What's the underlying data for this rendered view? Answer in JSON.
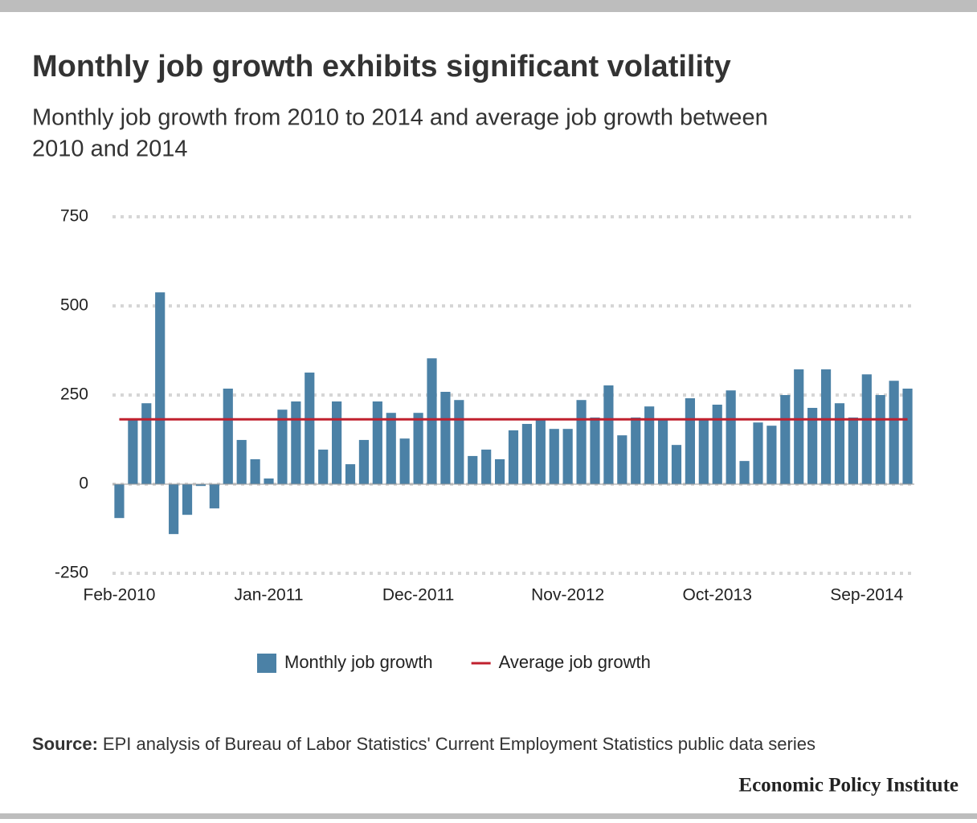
{
  "chart_data": {
    "type": "bar",
    "title": "Monthly job growth exhibits significant volatility",
    "subtitle_lines": [
      "Monthly job growth from 2010 to 2014 and average job growth between",
      "2010 and 2014"
    ],
    "categories": [
      "Feb-2010",
      null,
      null,
      null,
      null,
      null,
      null,
      null,
      null,
      null,
      null,
      "Jan-2011",
      null,
      null,
      null,
      null,
      null,
      null,
      null,
      null,
      null,
      null,
      "Dec-2011",
      null,
      null,
      null,
      null,
      null,
      null,
      null,
      null,
      null,
      null,
      "Nov-2012",
      null,
      null,
      null,
      null,
      null,
      null,
      null,
      null,
      null,
      null,
      "Oct-2013",
      null,
      null,
      null,
      null,
      null,
      null,
      null,
      null,
      null,
      null,
      "Sep-2014",
      null,
      null,
      null
    ],
    "series": [
      {
        "name": "Monthly job growth",
        "color": "#4b81a6",
        "kind": "bar",
        "values": [
          -95,
          182,
          227,
          538,
          -140,
          -86,
          -5,
          -68,
          268,
          124,
          70,
          16,
          209,
          232,
          313,
          97,
          232,
          56,
          124,
          232,
          200,
          128,
          200,
          353,
          259,
          236,
          79,
          97,
          70,
          151,
          169,
          182,
          155,
          155,
          236,
          187,
          277,
          137,
          187,
          218,
          182,
          110,
          241,
          182,
          223,
          263,
          65,
          173,
          164,
          250,
          322,
          214,
          322,
          227,
          187,
          308,
          250,
          290,
          268
        ]
      },
      {
        "name": "Average job growth",
        "color": "#c0202e",
        "kind": "line",
        "values": [
          182,
          182,
          182,
          182,
          182,
          182,
          182,
          182,
          182,
          182,
          182,
          182,
          182,
          182,
          182,
          182,
          182,
          182,
          182,
          182,
          182,
          182,
          182,
          182,
          182,
          182,
          182,
          182,
          182,
          182,
          182,
          182,
          182,
          182,
          182,
          182,
          182,
          182,
          182,
          182,
          182,
          182,
          182,
          182,
          182,
          182,
          182,
          182,
          182,
          182,
          182,
          182,
          182,
          182,
          182,
          182,
          182,
          182,
          182
        ]
      }
    ],
    "ylim": [
      -250,
      750
    ],
    "yticks": [
      -250,
      0,
      250,
      500,
      750
    ],
    "grid": true,
    "legend": "bottom",
    "source_label": "Source:",
    "source": "EPI analysis of Bureau of Labor Statistics' Current Employment Statistics public data series",
    "publisher": "Economic Policy Institute"
  }
}
